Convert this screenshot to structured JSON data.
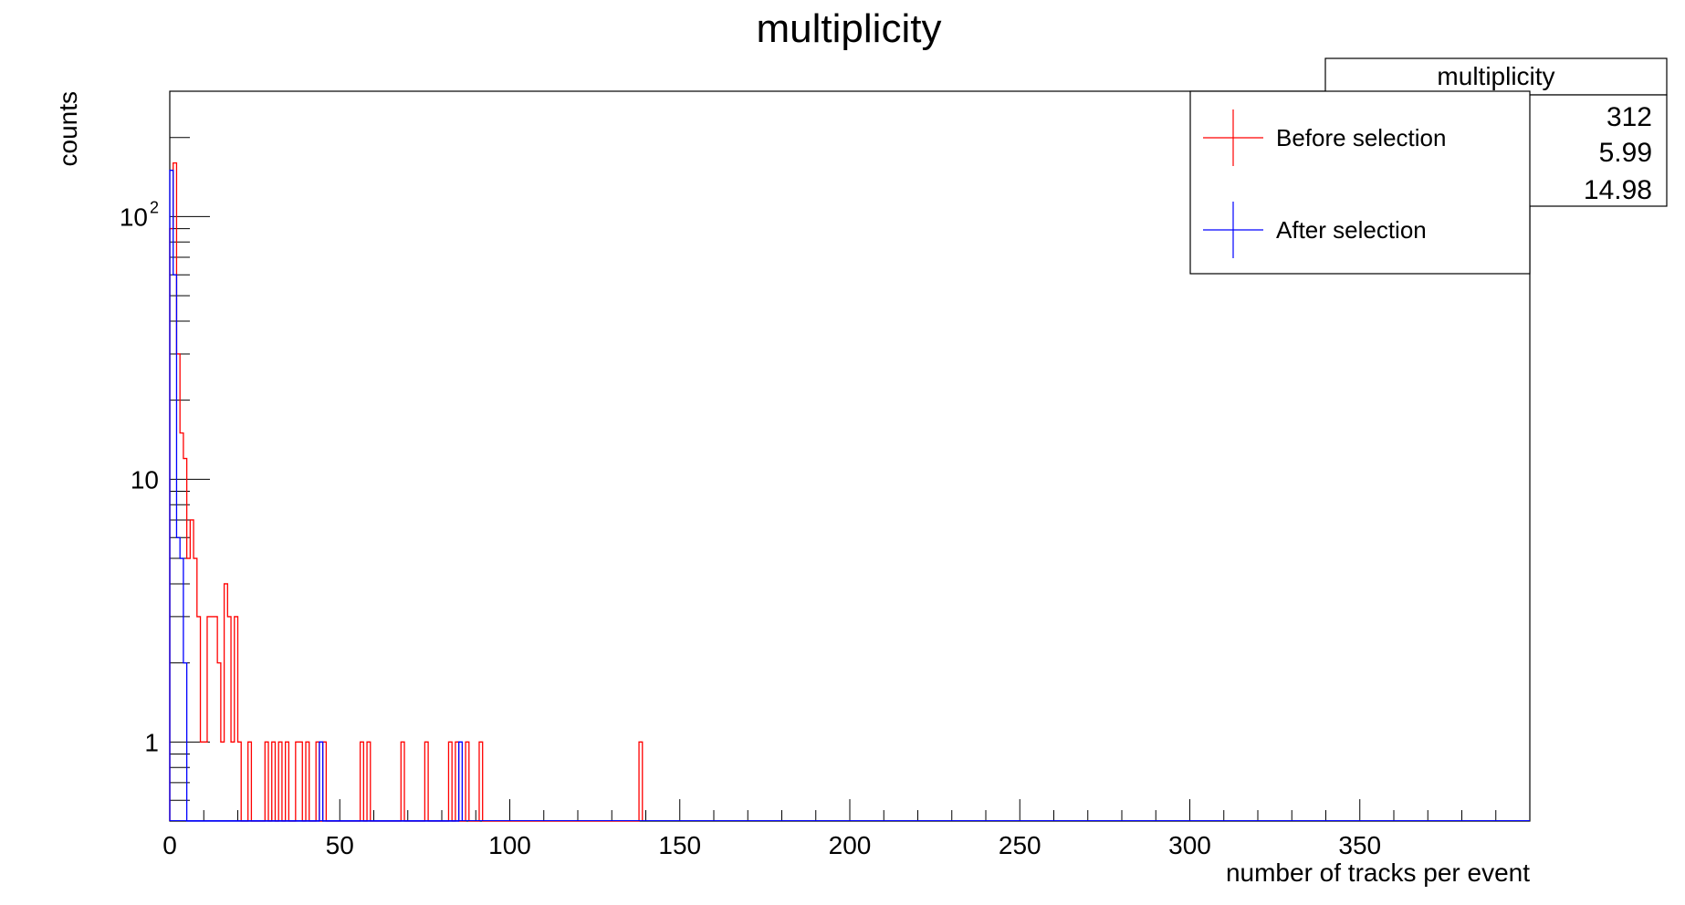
{
  "chart_data": {
    "type": "histogram",
    "title": "multiplicity",
    "xlabel": "number of tracks per event",
    "ylabel": "counts",
    "x_range": [
      0,
      400
    ],
    "y_range": [
      0.5,
      300
    ],
    "y_scale": "log",
    "grid": false,
    "bin_width": 1,
    "x_ticks": [
      "0",
      "50",
      "100",
      "150",
      "200",
      "250",
      "300",
      "350"
    ],
    "y_ticks": [
      {
        "value": 1,
        "label": "1"
      },
      {
        "value": 10,
        "label": "10"
      },
      {
        "value": 100,
        "label": "10",
        "exponent": "2"
      }
    ],
    "legend": {
      "position": "top-right",
      "entries": [
        {
          "label": "Before selection",
          "color": "#ff0000"
        },
        {
          "label": "After selection",
          "color": "#0000ff"
        }
      ]
    },
    "stats_box": {
      "title": "multiplicity",
      "values": [
        "312",
        "5.99",
        "14.98"
      ]
    },
    "series": [
      {
        "label": "Before selection",
        "color": "#ff0000",
        "bins": [
          [
            0,
            90
          ],
          [
            1,
            160
          ],
          [
            2,
            30
          ],
          [
            3,
            15
          ],
          [
            4,
            12
          ],
          [
            5,
            5
          ],
          [
            6,
            7
          ],
          [
            7,
            5
          ],
          [
            8,
            3
          ],
          [
            9,
            1
          ],
          [
            10,
            1
          ],
          [
            11,
            3
          ],
          [
            12,
            3
          ],
          [
            13,
            3
          ],
          [
            14,
            2
          ],
          [
            15,
            1
          ],
          [
            16,
            4
          ],
          [
            17,
            3
          ],
          [
            18,
            1
          ],
          [
            19,
            3
          ],
          [
            20,
            1
          ],
          [
            23,
            1
          ],
          [
            28,
            1
          ],
          [
            30,
            1
          ],
          [
            32,
            1
          ],
          [
            34,
            1
          ],
          [
            37,
            1
          ],
          [
            38,
            1
          ],
          [
            40,
            1
          ],
          [
            43,
            1
          ],
          [
            45,
            1
          ],
          [
            56,
            1
          ],
          [
            58,
            1
          ],
          [
            68,
            1
          ],
          [
            75,
            1
          ],
          [
            82,
            1
          ],
          [
            84,
            1
          ],
          [
            87,
            1
          ],
          [
            91,
            1
          ],
          [
            138,
            1
          ]
        ]
      },
      {
        "label": "After selection",
        "color": "#0000ff",
        "bins": [
          [
            0,
            150
          ],
          [
            1,
            60
          ],
          [
            2,
            6
          ],
          [
            3,
            5
          ],
          [
            4,
            2
          ],
          [
            44,
            1
          ],
          [
            85,
            1
          ]
        ]
      }
    ]
  }
}
